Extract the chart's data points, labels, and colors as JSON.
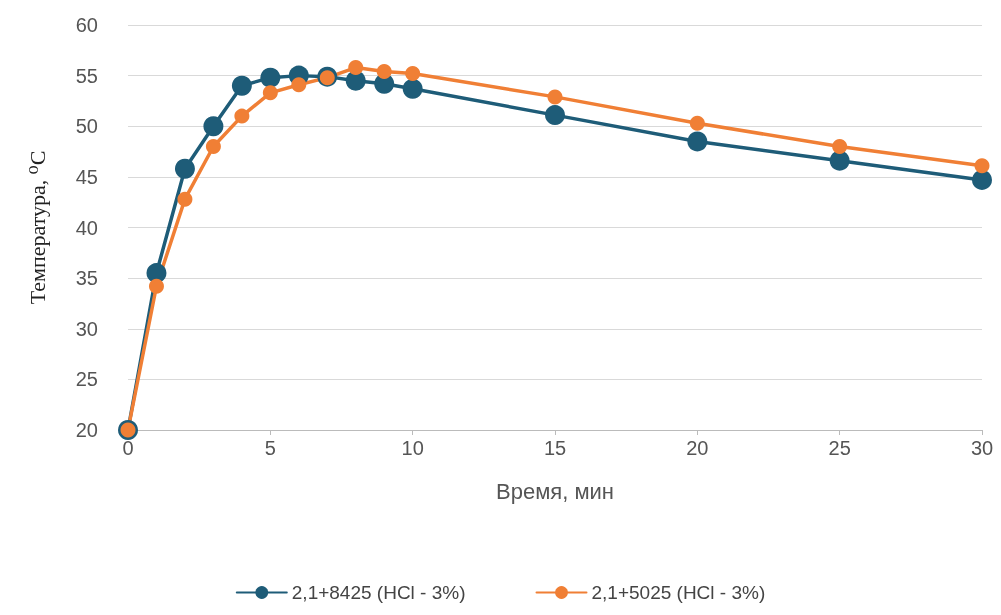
{
  "chart_data": {
    "type": "line",
    "xlabel": "Время, мин",
    "ylabel": "Температура, ⁰C",
    "x": [
      0,
      1,
      2,
      3,
      4,
      5,
      6,
      7,
      8,
      9,
      10,
      15,
      20,
      25,
      30
    ],
    "series": [
      {
        "name": "2,1+8425 (HCl - 3%)",
        "color": "#1e5c78",
        "values": [
          20,
          35.5,
          45.8,
          50,
          54,
          54.8,
          55,
          54.9,
          54.5,
          54.2,
          53.7,
          51.1,
          48.5,
          46.6,
          44.7
        ]
      },
      {
        "name": "2,1+5025 (HCl - 3%)",
        "color": "#f07f35",
        "values": [
          20,
          34.2,
          42.8,
          48,
          51,
          53.3,
          54.1,
          54.8,
          55.8,
          55.4,
          55.2,
          52.9,
          50.3,
          48,
          46.1
        ]
      }
    ],
    "xlim": [
      0,
      30
    ],
    "xticks": [
      0,
      5,
      10,
      15,
      20,
      25,
      30
    ],
    "ylim": [
      20,
      60
    ],
    "yticks": [
      20,
      25,
      30,
      35,
      40,
      45,
      50,
      55,
      60
    ],
    "grid": "y",
    "legend": "bottom",
    "marker": "circle",
    "line_style": "solid"
  }
}
